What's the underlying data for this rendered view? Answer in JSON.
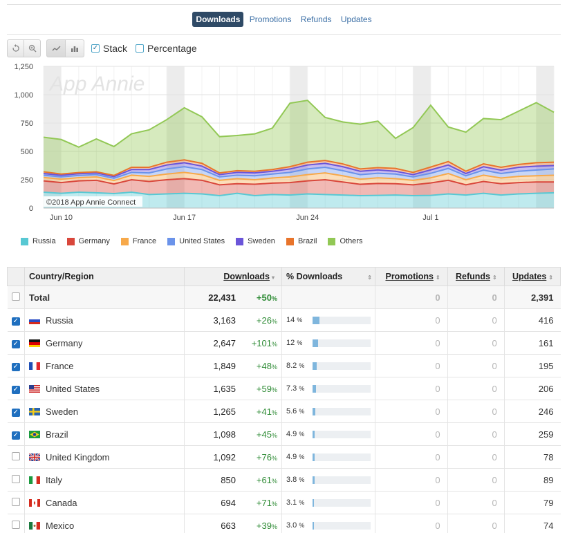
{
  "tabs": [
    {
      "label": "Downloads",
      "active": true
    },
    {
      "label": "Promotions",
      "active": false
    },
    {
      "label": "Refunds",
      "active": false
    },
    {
      "label": "Updates",
      "active": false
    }
  ],
  "toolbar": {
    "reset_icon": "undo-icon",
    "zoom_icon": "zoom-icon",
    "line_icon": "line-chart-icon",
    "bar_icon": "bar-chart-icon",
    "stack_label": "Stack",
    "stack_checked": true,
    "percentage_label": "Percentage",
    "percentage_checked": false
  },
  "chart_data": {
    "type": "area",
    "stacked": true,
    "watermark": "App Annie",
    "credit": "©2018 App Annie Connect",
    "ylim": [
      0,
      1250
    ],
    "yticks": [
      "0",
      "250",
      "500",
      "750",
      "1,000",
      "1,250"
    ],
    "x_tick_labels": [
      {
        "label": "Jun 10",
        "index": 1
      },
      {
        "label": "Jun 17",
        "index": 8
      },
      {
        "label": "Jun 24",
        "index": 15
      },
      {
        "label": "Jul 1",
        "index": 22
      }
    ],
    "weekend_bands": [
      [
        0,
        1
      ],
      [
        7,
        8
      ],
      [
        14,
        15
      ],
      [
        21,
        22
      ],
      [
        28,
        29
      ]
    ],
    "grid": true,
    "legend_position": "bottom",
    "x_days": 30,
    "series": [
      {
        "name": "Russia",
        "color": "#58c8d3",
        "values": [
          140,
          130,
          140,
          135,
          128,
          140,
          120,
          125,
          130,
          125,
          110,
          130,
          110,
          120,
          115,
          125,
          120,
          115,
          110,
          112,
          115,
          110,
          112,
          125,
          115,
          130,
          115,
          125,
          130,
          135
        ]
      },
      {
        "name": "Germany",
        "color": "#d9473b",
        "values": [
          100,
          95,
          100,
          110,
          85,
          110,
          115,
          125,
          130,
          120,
          95,
          85,
          100,
          100,
          110,
          115,
          130,
          115,
          100,
          105,
          100,
          95,
          110,
          120,
          90,
          105,
          100,
          100,
          100,
          95
        ]
      },
      {
        "name": "France",
        "color": "#f7a94a",
        "values": [
          30,
          30,
          28,
          30,
          30,
          40,
          45,
          50,
          55,
          50,
          40,
          45,
          40,
          45,
          50,
          55,
          60,
          55,
          45,
          50,
          45,
          40,
          45,
          60,
          45,
          55,
          50,
          55,
          55,
          60
        ]
      },
      {
        "name": "United States",
        "color": "#6b93ea",
        "values": [
          20,
          20,
          20,
          20,
          20,
          25,
          30,
          45,
          50,
          45,
          30,
          30,
          35,
          35,
          40,
          50,
          50,
          45,
          40,
          40,
          40,
          30,
          40,
          45,
          35,
          45,
          40,
          45,
          50,
          55
        ]
      },
      {
        "name": "Sweden",
        "color": "#6b55d9",
        "values": [
          15,
          15,
          15,
          15,
          15,
          25,
          30,
          35,
          35,
          30,
          20,
          25,
          25,
          25,
          30,
          35,
          35,
          35,
          30,
          30,
          25,
          20,
          30,
          30,
          20,
          30,
          30,
          35,
          35,
          30
        ]
      },
      {
        "name": "Brazil",
        "color": "#e8742b",
        "values": [
          15,
          10,
          10,
          10,
          10,
          20,
          20,
          25,
          25,
          25,
          15,
          15,
          15,
          15,
          20,
          25,
          25,
          25,
          20,
          20,
          25,
          20,
          25,
          30,
          20,
          25,
          25,
          25,
          30,
          30
        ]
      },
      {
        "name": "Others",
        "color": "#92c855",
        "values": [
          305,
          305,
          225,
          290,
          255,
          295,
          330,
          375,
          460,
          410,
          320,
          310,
          330,
          365,
          560,
          545,
          380,
          370,
          395,
          410,
          265,
          395,
          545,
          305,
          345,
          400,
          420,
          470,
          530,
          440
        ]
      }
    ]
  },
  "table": {
    "headers": {
      "country": "Country/Region",
      "downloads": "Downloads",
      "pct_downloads": "% Downloads",
      "promotions": "Promotions",
      "refunds": "Refunds",
      "updates": "Updates"
    },
    "total": {
      "name": "Total",
      "downloads": "22,431",
      "change": "+50",
      "promotions": "0",
      "refunds": "0",
      "updates": "2,391"
    },
    "rows": [
      {
        "name": "Russia",
        "flag": "ru",
        "checked": true,
        "downloads": "3,163",
        "change": "+26",
        "pct": "14",
        "pct_value": 14.1,
        "promotions": "0",
        "refunds": "0",
        "updates": "416"
      },
      {
        "name": "Germany",
        "flag": "de",
        "checked": true,
        "downloads": "2,647",
        "change": "+101",
        "pct": "12",
        "pct_value": 11.8,
        "promotions": "0",
        "refunds": "0",
        "updates": "161"
      },
      {
        "name": "France",
        "flag": "fr",
        "checked": true,
        "downloads": "1,849",
        "change": "+48",
        "pct": "8.2",
        "pct_value": 8.2,
        "promotions": "0",
        "refunds": "0",
        "updates": "195"
      },
      {
        "name": "United States",
        "flag": "us",
        "checked": true,
        "downloads": "1,635",
        "change": "+59",
        "pct": "7.3",
        "pct_value": 7.3,
        "promotions": "0",
        "refunds": "0",
        "updates": "206"
      },
      {
        "name": "Sweden",
        "flag": "se",
        "checked": true,
        "downloads": "1,265",
        "change": "+41",
        "pct": "5.6",
        "pct_value": 5.6,
        "promotions": "0",
        "refunds": "0",
        "updates": "246"
      },
      {
        "name": "Brazil",
        "flag": "br",
        "checked": true,
        "downloads": "1,098",
        "change": "+45",
        "pct": "4.9",
        "pct_value": 4.9,
        "promotions": "0",
        "refunds": "0",
        "updates": "259"
      },
      {
        "name": "United Kingdom",
        "flag": "gb",
        "checked": false,
        "downloads": "1,092",
        "change": "+76",
        "pct": "4.9",
        "pct_value": 4.9,
        "promotions": "0",
        "refunds": "0",
        "updates": "78"
      },
      {
        "name": "Italy",
        "flag": "it",
        "checked": false,
        "downloads": "850",
        "change": "+61",
        "pct": "3.8",
        "pct_value": 3.8,
        "promotions": "0",
        "refunds": "0",
        "updates": "89"
      },
      {
        "name": "Canada",
        "flag": "ca",
        "checked": false,
        "downloads": "694",
        "change": "+71",
        "pct": "3.1",
        "pct_value": 3.1,
        "promotions": "0",
        "refunds": "0",
        "updates": "79"
      },
      {
        "name": "Mexico",
        "flag": "mx",
        "checked": false,
        "downloads": "663",
        "change": "+39",
        "pct": "3.0",
        "pct_value": 3.0,
        "promotions": "0",
        "refunds": "0",
        "updates": "74"
      }
    ]
  }
}
